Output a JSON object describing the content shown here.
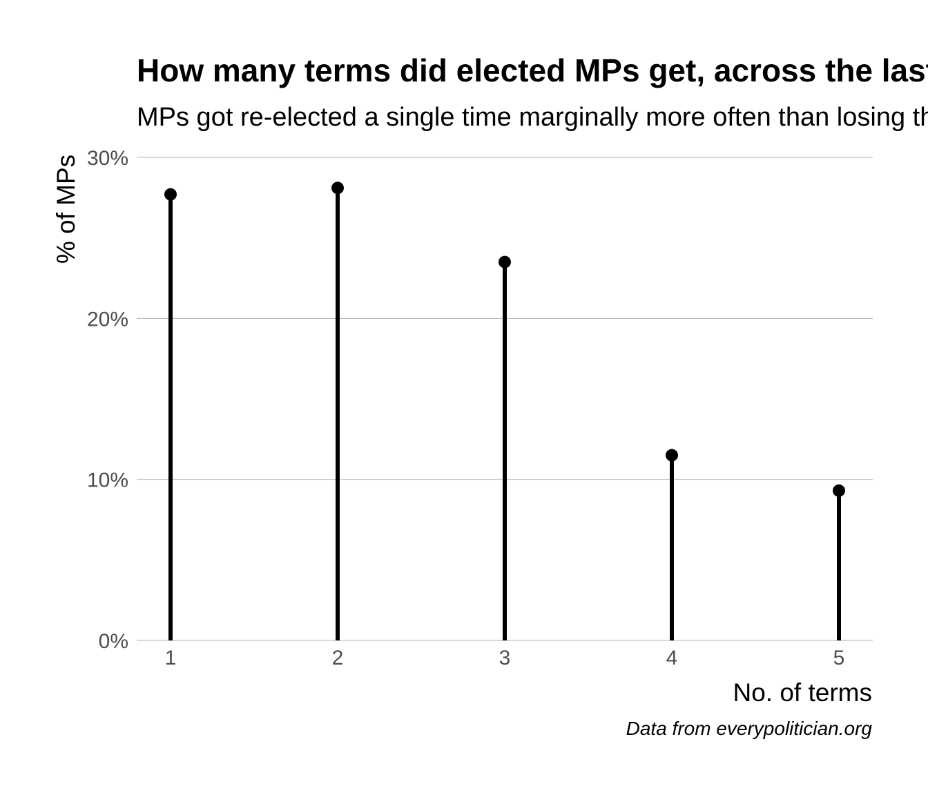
{
  "chart_data": {
    "type": "lollipop",
    "title": "How many terms did elected MPs get, across the last five",
    "subtitle": "MPs got re-elected a single time marginally more often than losing their se",
    "xlabel": "No. of terms",
    "ylabel": "% of MPs",
    "caption": "Data from everypolitician.org",
    "categories": [
      "1",
      "2",
      "3",
      "4",
      "5"
    ],
    "values": [
      27.7,
      28.1,
      23.5,
      11.5,
      9.3
    ],
    "ylim": [
      0,
      30
    ],
    "yticks": [
      0,
      10,
      20,
      30
    ],
    "ytick_labels": [
      "0%",
      "10%",
      "20%",
      "30%"
    ],
    "grid": true,
    "legend": "none",
    "colors": {
      "mark": "#000000",
      "grid": "#b3b3b3",
      "tick_text": "#4d4d4d"
    }
  }
}
